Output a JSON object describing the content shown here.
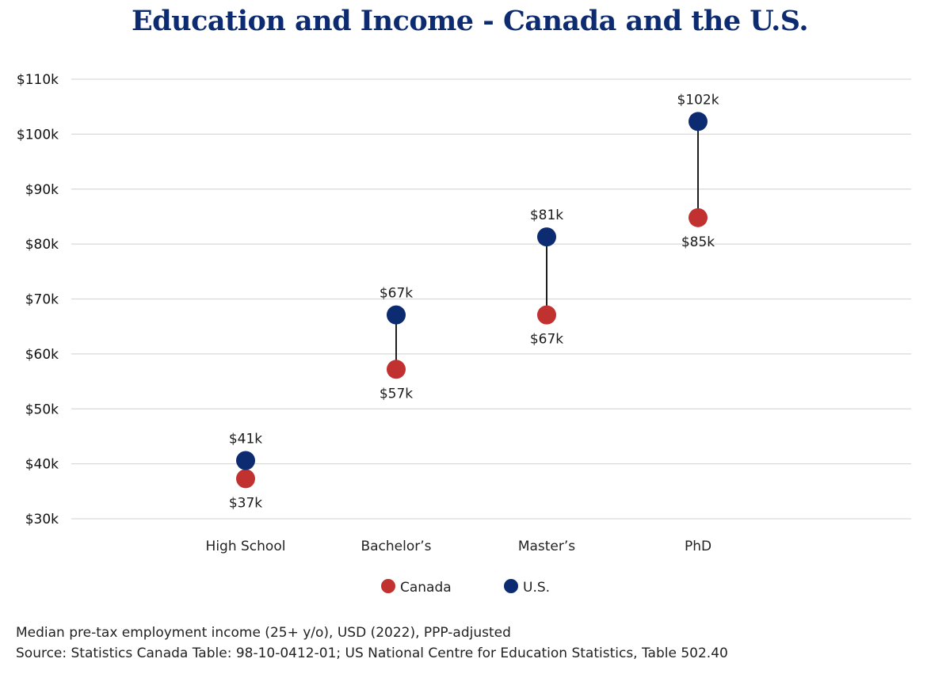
{
  "chart_data": {
    "type": "dumbbell",
    "title": "Education and Income - Canada and the U.S.",
    "categories": [
      "High School",
      "Bachelor’s",
      "Master’s",
      "PhD"
    ],
    "series": [
      {
        "name": "Canada",
        "color": "#c0312f",
        "values": [
          37.3,
          57.2,
          67.1,
          84.8
        ],
        "labels": [
          "$37k",
          "$57k",
          "$67k",
          "$85k"
        ]
      },
      {
        "name": "U.S.",
        "color": "#0d2b70",
        "values": [
          40.6,
          67.1,
          81.3,
          102.3
        ],
        "labels": [
          "$41k",
          "$67k",
          "$81k",
          "$102k"
        ]
      }
    ],
    "yticks": [
      30,
      40,
      50,
      60,
      70,
      80,
      90,
      100,
      110
    ],
    "ytick_labels": [
      "$30k",
      "$40k",
      "$50k",
      "$60k",
      "$70k",
      "$80k",
      "$90k",
      "$100k",
      "$110k"
    ],
    "ylim": [
      30,
      110
    ],
    "grid": true,
    "legend_position": "bottom-center",
    "connector_color": "#1e1e1e"
  },
  "footnotes": {
    "line1": "Median pre-tax employment income (25+ y/o), USD (2022), PPP-adjusted",
    "line2": "Source: Statistics Canada Table: 98-10-0412-01; US National Centre for Education Statistics, Table 502.40"
  }
}
